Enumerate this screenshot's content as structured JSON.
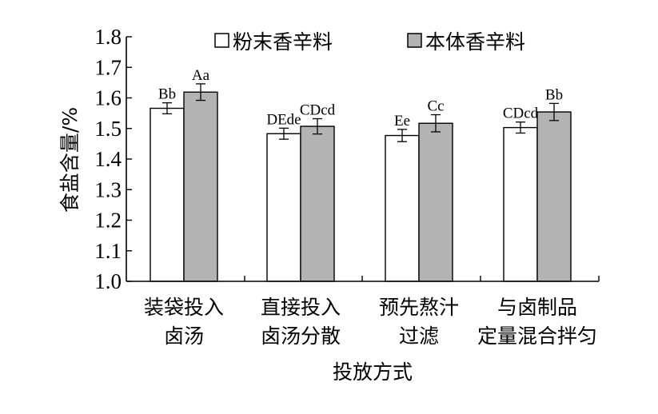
{
  "chart_data": {
    "type": "bar",
    "ylabel": "食盐含量/%",
    "xlabel": "投放方式",
    "ylim": [
      1.0,
      1.8
    ],
    "yticks": [
      "1.0",
      "1.1",
      "1.2",
      "1.3",
      "1.4",
      "1.5",
      "1.6",
      "1.7",
      "1.8"
    ],
    "grid": false,
    "legend_position": "top",
    "categories": [
      [
        "装袋投入",
        "卤汤"
      ],
      [
        "直接投入",
        "卤汤分散"
      ],
      [
        "预先熬汁",
        "过滤"
      ],
      [
        "与卤制品",
        "定量混合拌匀"
      ]
    ],
    "series": [
      {
        "name": "粉末香辛料",
        "color": "#ffffff",
        "values": [
          1.566,
          1.483,
          1.477,
          1.503
        ],
        "errors": [
          0.018,
          0.018,
          0.02,
          0.018
        ],
        "labels": [
          "Bb",
          "DEde",
          "Ee",
          "CDcd"
        ]
      },
      {
        "name": "本体香辛料",
        "color": "#b3b3b3",
        "values": [
          1.619,
          1.507,
          1.517,
          1.554
        ],
        "errors": [
          0.027,
          0.025,
          0.028,
          0.028
        ],
        "labels": [
          "Aa",
          "CDcd",
          "Cc",
          "Bb"
        ]
      }
    ]
  }
}
